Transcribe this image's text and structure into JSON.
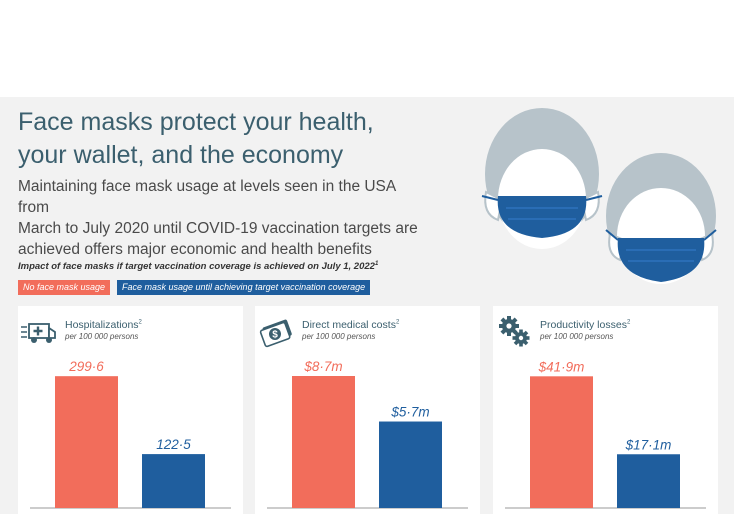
{
  "header": {
    "title": "Face masks protect your health,\nyour wallet, and the economy",
    "subtitle": "Maintaining face mask usage at levels seen in the USA from\nMarch to July 2020 until COVID-19 vaccination targets are\nachieved offers major economic and health benefits"
  },
  "note": {
    "text": "Impact of face masks if target vaccination coverage is achieved on July 1, 2022",
    "footnote": "1"
  },
  "legend": [
    {
      "label": "No face mask usage",
      "color": "#f26d5b"
    },
    {
      "label": "Face mask usage until achieving target vaccination coverage",
      "color": "#1f5e9e"
    }
  ],
  "colors": {
    "no_mask": "#f26d5b",
    "mask": "#1f5e9e",
    "title": "#3b5f6e",
    "panel": "#f2f2f2",
    "icon": "#3b5f6e"
  },
  "icons": {
    "card1": "ambulance-icon",
    "card2": "money-icon",
    "card3": "gears-icon",
    "illustration": "masked-faces-illustration"
  },
  "chart_data": [
    {
      "type": "bar",
      "title": "Hospitalizations",
      "title_footnote": "2",
      "unit": "per 100 000 persons",
      "categories": [
        "No face mask usage",
        "Face mask usage until achieving target vaccination coverage"
      ],
      "values": [
        299.6,
        122.5
      ],
      "value_labels": [
        "299·6",
        "122·5"
      ],
      "ylim": [
        0,
        400
      ]
    },
    {
      "type": "bar",
      "title": "Direct medical costs",
      "title_footnote": "2",
      "unit": "per 100 000 persons",
      "categories": [
        "No face mask usage",
        "Face mask usage until achieving target vaccination coverage"
      ],
      "values": [
        8.7,
        5.7
      ],
      "value_labels": [
        "$8·7m",
        "$5·7m"
      ],
      "ylim": [
        0,
        11.6
      ]
    },
    {
      "type": "bar",
      "title": "Productivity losses",
      "title_footnote": "2",
      "unit": "per 100 000 persons",
      "categories": [
        "No face mask usage",
        "Face mask usage until achieving target vaccination coverage"
      ],
      "values": [
        41.9,
        17.1
      ],
      "value_labels": [
        "$41·9m",
        "$17·1m"
      ],
      "ylim": [
        0,
        56
      ]
    }
  ]
}
